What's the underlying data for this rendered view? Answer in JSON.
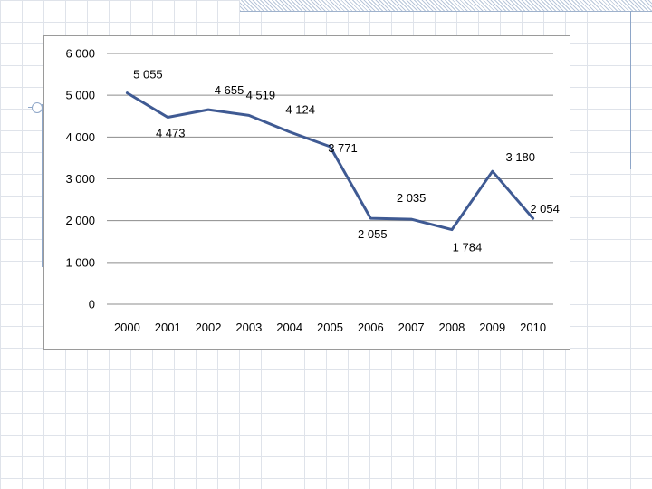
{
  "chart_data": {
    "type": "line",
    "title": "",
    "xlabel": "",
    "ylabel": "",
    "categories": [
      "2000",
      "2001",
      "2002",
      "2003",
      "2004",
      "2005",
      "2006",
      "2007",
      "2008",
      "2009",
      "2010"
    ],
    "values": [
      5055,
      4473,
      4655,
      4519,
      4124,
      3771,
      2055,
      2035,
      1784,
      3180,
      2054
    ],
    "data_labels": [
      "5 055",
      "4 473",
      "4 655",
      "4 519",
      "4 124",
      "3 771",
      "2 055",
      "2 035",
      "1 784",
      "3 180",
      "2 054"
    ],
    "y_ticks": [
      0,
      1000,
      2000,
      3000,
      4000,
      5000,
      6000
    ],
    "y_tick_labels": [
      "0",
      "1 000",
      "2 000",
      "3 000",
      "4 000",
      "5 000",
      "6 000"
    ],
    "ylim": [
      0,
      6000
    ],
    "grid": true,
    "legend": "none",
    "line_color": "#3f5a93"
  }
}
